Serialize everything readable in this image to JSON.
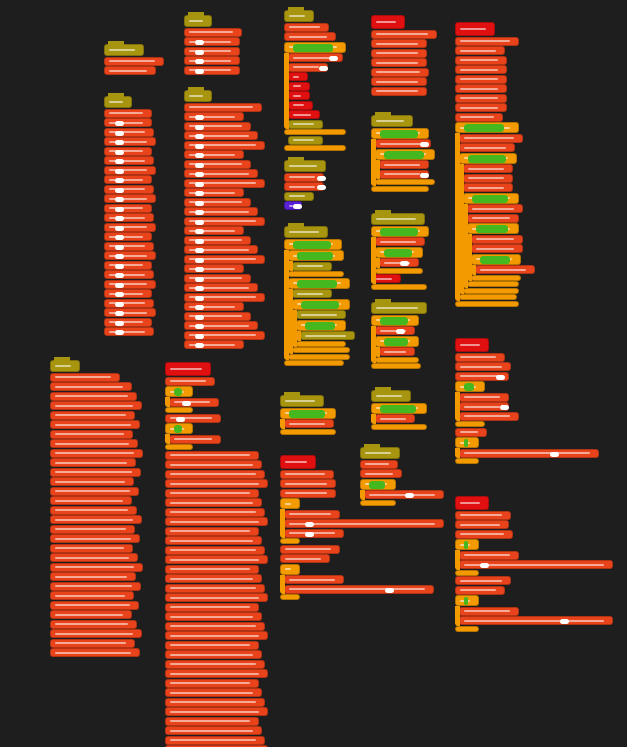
{
  "workspace": {
    "background": "#1e1e1e",
    "colors": {
      "hat": "#a8950f",
      "block": "#e8431b",
      "define": "#e01010",
      "control": "#f29a00",
      "operator": "#45b81f",
      "looks": "#5b1fd6",
      "input": "#ffffff"
    }
  }
}
